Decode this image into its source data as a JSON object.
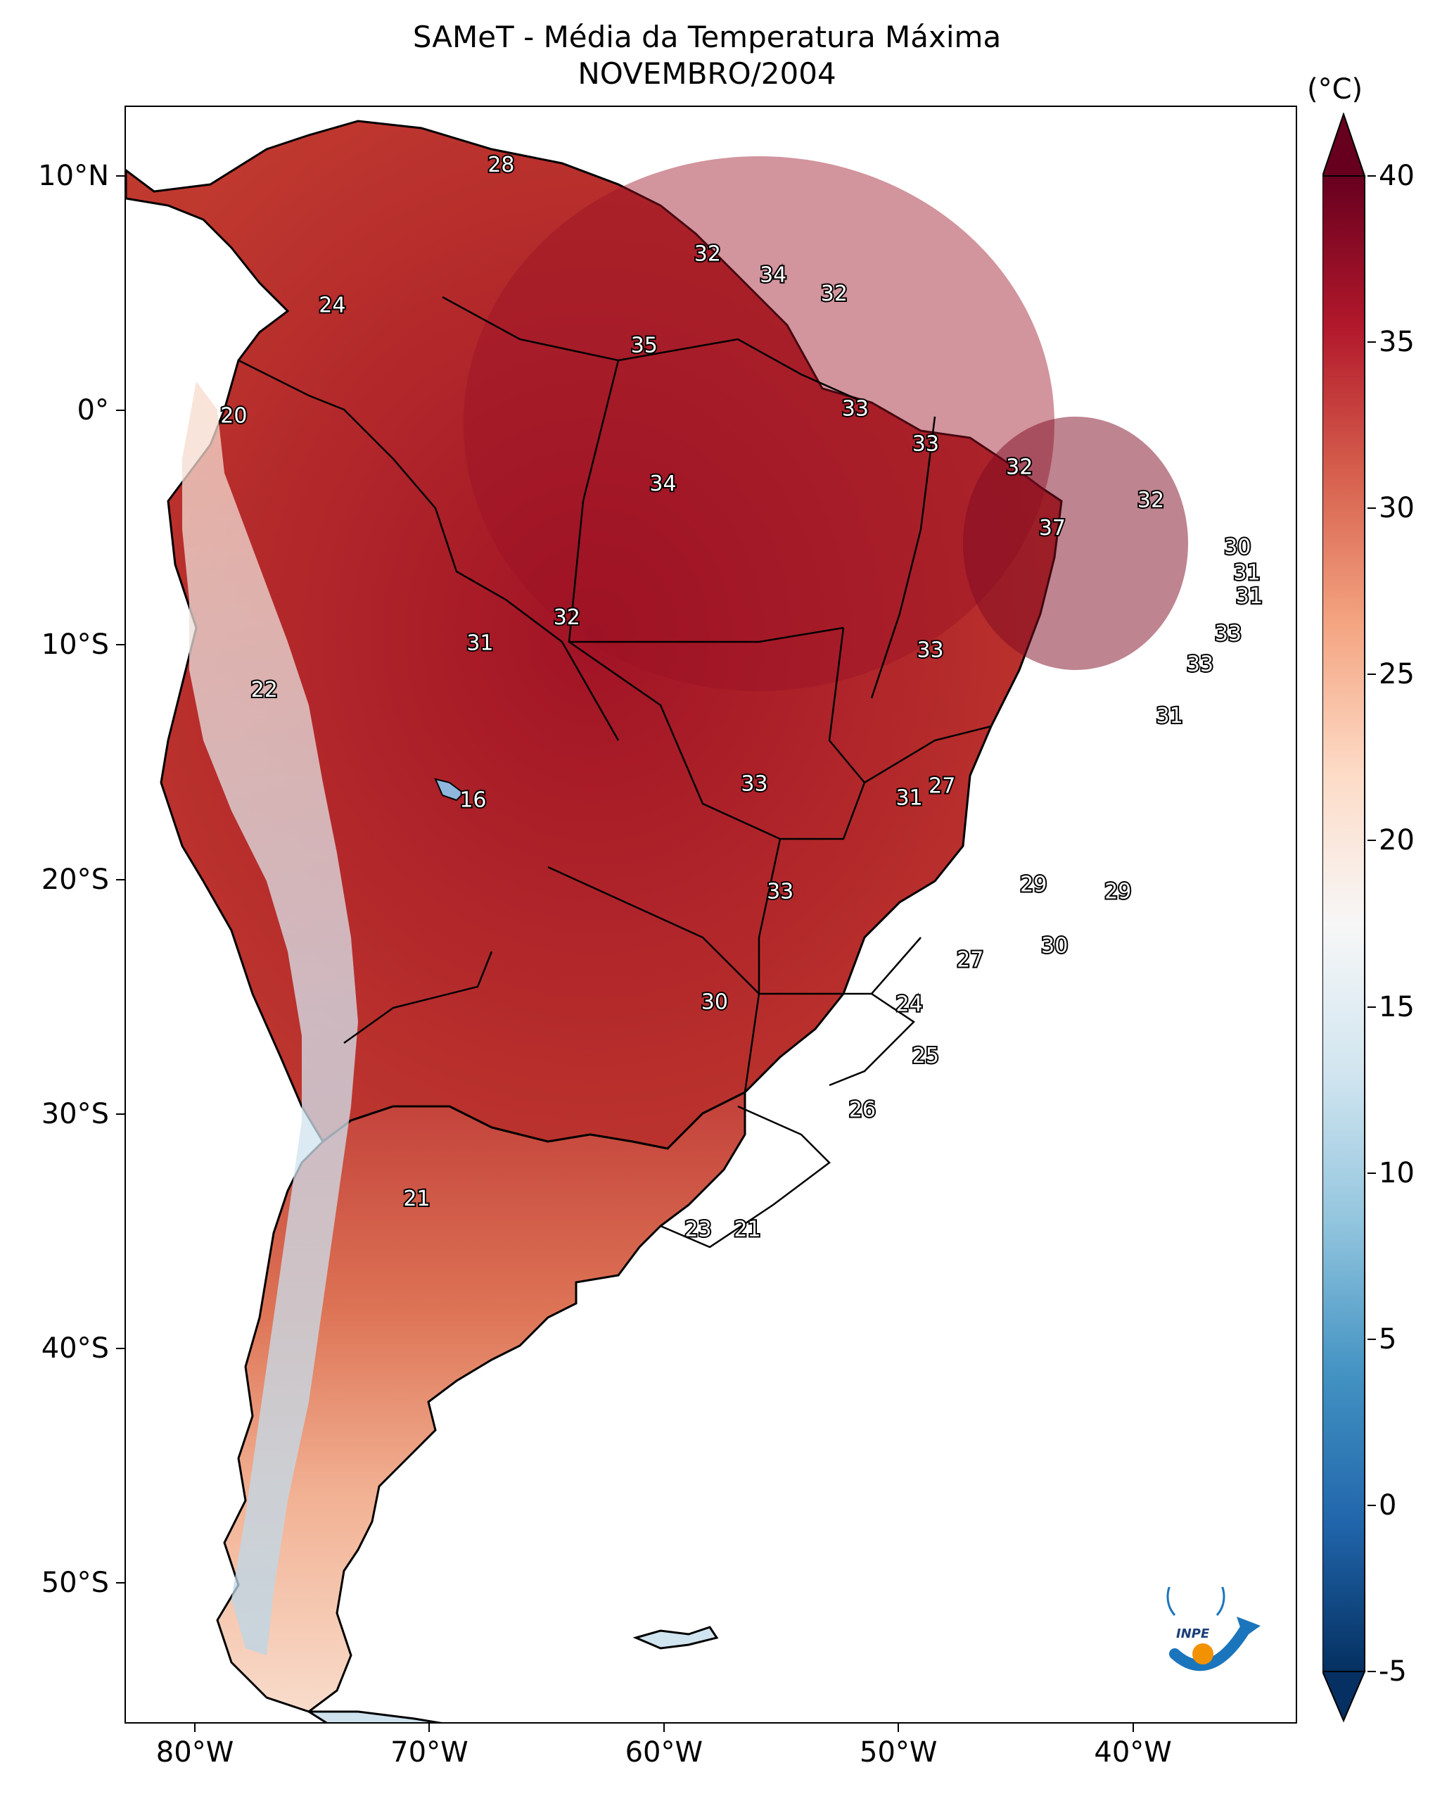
{
  "title": {
    "line1": "SAMeT - Média da Temperatura Máxima",
    "line2": "NOVEMBRO/2004"
  },
  "map": {
    "lon_range": [
      -83,
      -33
    ],
    "lat_range": [
      -56,
      13
    ],
    "y_ticks": [
      {
        "lat": 10,
        "label": "10°N"
      },
      {
        "lat": 0,
        "label": "0°"
      },
      {
        "lat": -10,
        "label": "10°S"
      },
      {
        "lat": -20,
        "label": "20°S"
      },
      {
        "lat": -30,
        "label": "30°S"
      },
      {
        "lat": -40,
        "label": "40°S"
      },
      {
        "lat": -50,
        "label": "50°S"
      }
    ],
    "x_ticks": [
      {
        "lon": -80,
        "label": "80°W"
      },
      {
        "lon": -70,
        "label": "70°W"
      },
      {
        "lon": -60,
        "label": "60°W"
      },
      {
        "lon": -50,
        "label": "50°W"
      },
      {
        "lon": -40,
        "label": "40°W"
      }
    ],
    "value_labels": [
      {
        "text": "28",
        "lon": -67.0,
        "lat": 10.5
      },
      {
        "text": "24",
        "lon": -74.2,
        "lat": 4.5
      },
      {
        "text": "32",
        "lon": -58.2,
        "lat": 6.7
      },
      {
        "text": "34",
        "lon": -55.4,
        "lat": 5.8
      },
      {
        "text": "32",
        "lon": -52.8,
        "lat": 5.0
      },
      {
        "text": "35",
        "lon": -60.9,
        "lat": 2.8
      },
      {
        "text": "20",
        "lon": -78.4,
        "lat": -0.2
      },
      {
        "text": "33",
        "lon": -51.9,
        "lat": 0.1
      },
      {
        "text": "33",
        "lon": -48.9,
        "lat": -1.4
      },
      {
        "text": "34",
        "lon": -60.1,
        "lat": -3.1
      },
      {
        "text": "32",
        "lon": -44.9,
        "lat": -2.4
      },
      {
        "text": "32",
        "lon": -39.3,
        "lat": -3.8
      },
      {
        "text": "37",
        "lon": -43.5,
        "lat": -5.0
      },
      {
        "text": "30",
        "lon": -35.6,
        "lat": -5.8
      },
      {
        "text": "31",
        "lon": -35.2,
        "lat": -6.9
      },
      {
        "text": "31",
        "lon": -35.1,
        "lat": -7.9
      },
      {
        "text": "32",
        "lon": -64.2,
        "lat": -8.8
      },
      {
        "text": "31",
        "lon": -67.9,
        "lat": -9.9
      },
      {
        "text": "33",
        "lon": -36.0,
        "lat": -9.5
      },
      {
        "text": "33",
        "lon": -48.7,
        "lat": -10.2
      },
      {
        "text": "33",
        "lon": -37.2,
        "lat": -10.8
      },
      {
        "text": "22",
        "lon": -77.1,
        "lat": -11.9
      },
      {
        "text": "31",
        "lon": -38.5,
        "lat": -13.0
      },
      {
        "text": "33",
        "lon": -56.2,
        "lat": -15.9
      },
      {
        "text": "27",
        "lon": -48.2,
        "lat": -16.0
      },
      {
        "text": "16",
        "lon": -68.2,
        "lat": -16.6
      },
      {
        "text": "31",
        "lon": -49.6,
        "lat": -16.5
      },
      {
        "text": "29",
        "lon": -44.3,
        "lat": -20.2
      },
      {
        "text": "29",
        "lon": -40.7,
        "lat": -20.5
      },
      {
        "text": "33",
        "lon": -55.1,
        "lat": -20.5
      },
      {
        "text": "30",
        "lon": -43.4,
        "lat": -22.8
      },
      {
        "text": "27",
        "lon": -47.0,
        "lat": -23.4
      },
      {
        "text": "30",
        "lon": -57.9,
        "lat": -25.2
      },
      {
        "text": "24",
        "lon": -49.6,
        "lat": -25.3
      },
      {
        "text": "25",
        "lon": -48.9,
        "lat": -27.5
      },
      {
        "text": "26",
        "lon": -51.6,
        "lat": -29.8
      },
      {
        "text": "21",
        "lon": -70.6,
        "lat": -33.6
      },
      {
        "text": "23",
        "lon": -58.6,
        "lat": -34.9
      },
      {
        "text": "21",
        "lon": -56.5,
        "lat": -34.9
      }
    ]
  },
  "colorbar": {
    "unit": "(°C)",
    "range": [
      -5,
      40
    ],
    "ticks": [
      {
        "value": 40,
        "label": "40"
      },
      {
        "value": 35,
        "label": "35"
      },
      {
        "value": 30,
        "label": "30"
      },
      {
        "value": 25,
        "label": "25"
      },
      {
        "value": 20,
        "label": "20"
      },
      {
        "value": 15,
        "label": "15"
      },
      {
        "value": 10,
        "label": "10"
      },
      {
        "value": 5,
        "label": "5"
      },
      {
        "value": 0,
        "label": "0"
      },
      {
        "value": -5,
        "label": "-5"
      }
    ],
    "colors": [
      "#053061",
      "#2166ac",
      "#4393c3",
      "#92c5de",
      "#d1e5f0",
      "#f7f7f7",
      "#fddbc7",
      "#f4a582",
      "#d6604d",
      "#b2182b",
      "#67001f"
    ]
  },
  "logo": {
    "text": "INPE",
    "icon": "inpe-logo-icon"
  }
}
